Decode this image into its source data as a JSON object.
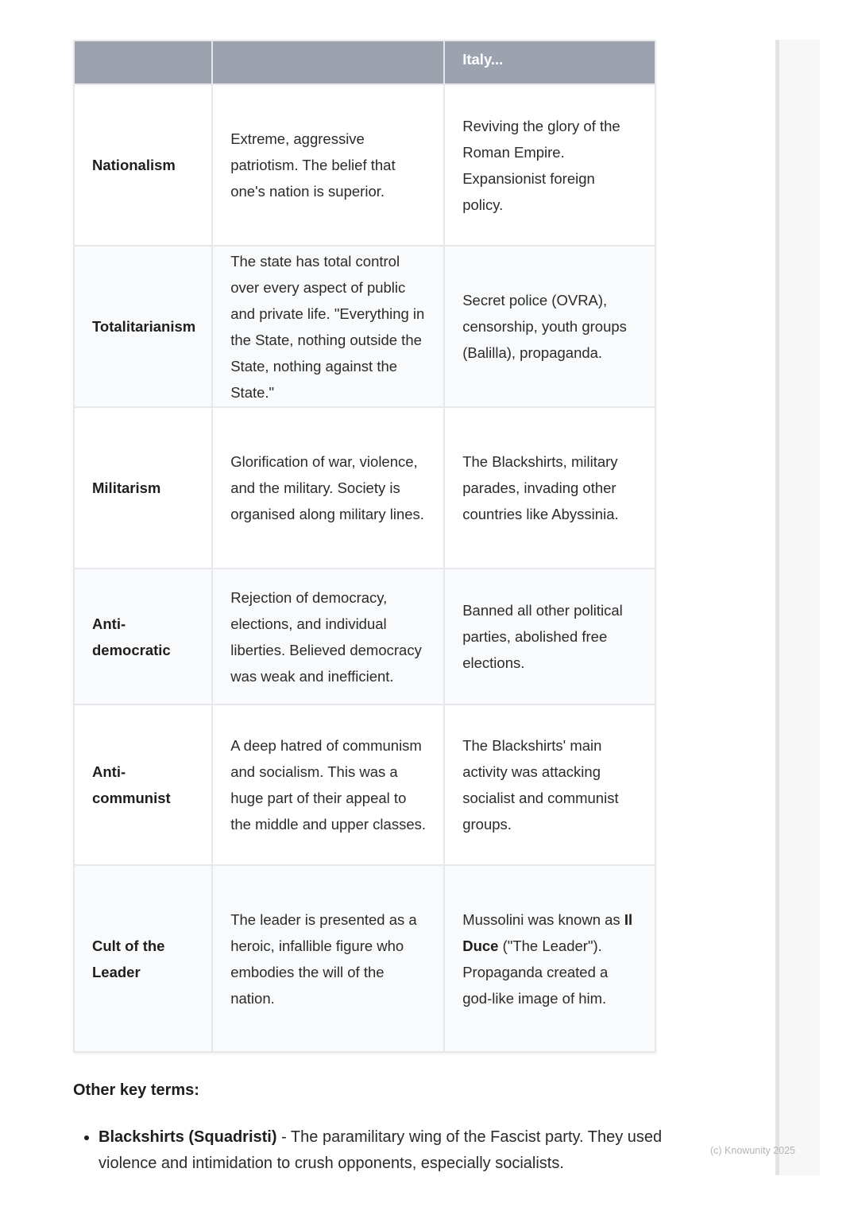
{
  "table": {
    "headers": [
      "",
      "",
      "Italy..."
    ],
    "rows": [
      {
        "term": "Nationalism",
        "definition": "Extreme, aggressive patriotism. The belief that one's nation is superior.",
        "example": "Reviving the glory of the Roman Empire. Expansionist foreign policy."
      },
      {
        "term": "Totalitarianism",
        "definition": "The state has total control over every aspect of public and private life. \"Everything in the State, nothing outside the State, nothing against the State.\"",
        "example": "Secret police (OVRA), censorship, youth groups (Balilla), propaganda."
      },
      {
        "term": "Militarism",
        "definition": "Glorification of war, violence, and the military. Society is organised along military lines.",
        "example": "The Blackshirts, military parades, invading other countries like Abyssinia."
      },
      {
        "term": "Anti-democratic",
        "definition": "Rejection of democracy, elections, and individual liberties. Believed democracy was weak and inefficient.",
        "example": "Banned all other political parties, abolished free elections."
      },
      {
        "term": "Anti-communist",
        "definition": "A deep hatred of communism and socialism. This was a huge part of their appeal to the middle and upper classes.",
        "example": "The Blackshirts' main activity was attacking socialist and communist groups."
      },
      {
        "term": "Cult of the Leader",
        "definition": "The leader is presented as a heroic, infallible figure who embodies the will of the nation.",
        "example_pre": "Mussolini was known as ",
        "example_bold": "Il Duce",
        "example_post": " (\"The Leader\"). Propaganda created a god-like image of him."
      }
    ]
  },
  "key_terms": {
    "heading": "Other key terms:",
    "items": [
      {
        "term": "Blackshirts (Squadristi)",
        "text": " - The paramilitary wing of the Fascist party. They used violence and intimidation to crush opponents, especially socialists."
      }
    ]
  },
  "footer": {
    "copyright": "(c) Knowunity 2025"
  }
}
